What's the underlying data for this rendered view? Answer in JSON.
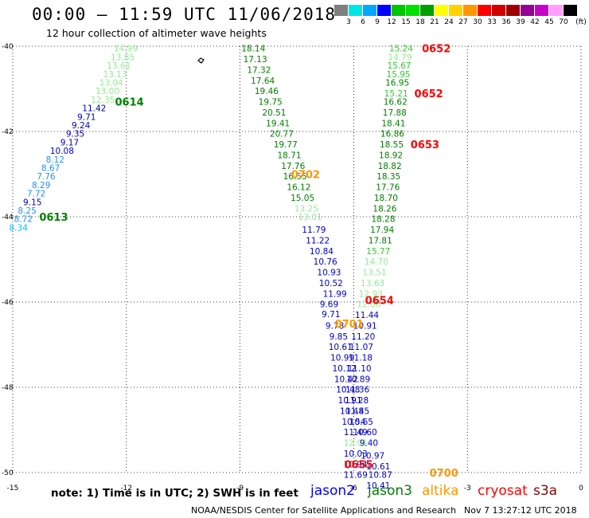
{
  "header": {
    "title": "00:00 — 11:59 UTC 11/06/2018",
    "subtitle": "12 hour collection of altimeter wave heights"
  },
  "colorbar": {
    "unit": "(ft)",
    "colors": [
      "#7f7f7f",
      "#00e5e5",
      "#00a8ff",
      "#0000ff",
      "#00c800",
      "#00e000",
      "#00a000",
      "#ffff00",
      "#ffd200",
      "#ff9600",
      "#ff0000",
      "#d20000",
      "#a00000",
      "#960096",
      "#c800c8",
      "#ffa0ff",
      "#000000"
    ],
    "labels": [
      "3",
      "6",
      "9",
      "12",
      "15",
      "18",
      "21",
      "24",
      "27",
      "30",
      "33",
      "36",
      "39",
      "42",
      "45",
      "70"
    ]
  },
  "axes": {
    "x_ticks": [
      "-15",
      "-12",
      "-9",
      "-6",
      "-3",
      "0"
    ],
    "y_ticks": [
      "-40",
      "-42",
      "-44",
      "-46",
      "-48",
      "-50"
    ]
  },
  "chart_data": {
    "type": "scatter",
    "xlim": [
      -15,
      0
    ],
    "ylim": [
      -50,
      -40
    ],
    "grid": true,
    "track_labels": [
      {
        "text": "0652",
        "sat": "cryosat",
        "lon": -4.2,
        "lat": -40.05
      },
      {
        "text": "0652",
        "sat": "cryosat",
        "lon": -4.4,
        "lat": -41.1
      },
      {
        "text": "0653",
        "sat": "cryosat",
        "lon": -4.5,
        "lat": -42.3
      },
      {
        "text": "0654",
        "sat": "cryosat",
        "lon": -5.7,
        "lat": -45.95
      },
      {
        "text": "0655",
        "sat": "cryosat",
        "lon": -6.25,
        "lat": -49.8
      },
      {
        "text": "0614",
        "sat": "jason3",
        "lon": -12.3,
        "lat": -41.3
      },
      {
        "text": "0613",
        "sat": "jason3",
        "lon": -14.3,
        "lat": -44.0
      },
      {
        "text": "0702",
        "sat": "altika",
        "lon": -7.65,
        "lat": -43.0
      },
      {
        "text": "0701",
        "sat": "altika",
        "lon": -6.5,
        "lat": -46.5
      },
      {
        "text": "0700",
        "sat": "altika",
        "lon": -4.0,
        "lat": -50.0
      }
    ],
    "series": [
      {
        "name": "track_a",
        "points": [
          {
            "lon": -12.02,
            "lat": -40.05,
            "v": "14.99",
            "c": "#90ee90"
          },
          {
            "lon": -12.1,
            "lat": -40.25,
            "v": "13.85",
            "c": "#90ee90"
          },
          {
            "lon": -12.2,
            "lat": -40.45,
            "v": "13.61",
            "c": "#90ee90"
          },
          {
            "lon": -12.3,
            "lat": -40.65,
            "v": "13.13",
            "c": "#90ee90"
          },
          {
            "lon": -12.4,
            "lat": -40.85,
            "v": "13.04",
            "c": "#90ee90"
          },
          {
            "lon": -12.5,
            "lat": -41.05,
            "v": "13.00",
            "c": "#90ee90"
          },
          {
            "lon": -12.62,
            "lat": -41.25,
            "v": "12.35",
            "c": "#90ee90"
          },
          {
            "lon": -12.85,
            "lat": -41.45,
            "v": "11.42",
            "c": "#0000c8"
          },
          {
            "lon": -13.05,
            "lat": -41.65,
            "v": "9.71",
            "c": "#0000c8"
          },
          {
            "lon": -13.2,
            "lat": -41.85,
            "v": "9.24",
            "c": "#0000c8"
          },
          {
            "lon": -13.35,
            "lat": -42.05,
            "v": "9.35",
            "c": "#0000c8"
          },
          {
            "lon": -13.5,
            "lat": -42.25,
            "v": "9.17",
            "c": "#0000c8"
          },
          {
            "lon": -13.7,
            "lat": -42.45,
            "v": "10.08",
            "c": "#0000c8"
          },
          {
            "lon": -13.88,
            "lat": -42.65,
            "v": "8.12",
            "c": "#1e90ff"
          },
          {
            "lon": -14.0,
            "lat": -42.85,
            "v": "8.67",
            "c": "#1e90ff"
          },
          {
            "lon": -14.12,
            "lat": -43.05,
            "v": "7.76",
            "c": "#1e90ff"
          },
          {
            "lon": -14.25,
            "lat": -43.25,
            "v": "8.29",
            "c": "#1e90ff"
          },
          {
            "lon": -14.38,
            "lat": -43.45,
            "v": "7.72",
            "c": "#1e90ff"
          },
          {
            "lon": -14.48,
            "lat": -43.65,
            "v": "9.15",
            "c": "#0000c8"
          },
          {
            "lon": -14.62,
            "lat": -43.85,
            "v": "8.25",
            "c": "#1e90ff"
          },
          {
            "lon": -14.72,
            "lat": -44.05,
            "v": "8.72",
            "c": "#1e90ff"
          },
          {
            "lon": -14.85,
            "lat": -44.25,
            "v": "8.34",
            "c": "#00bfff"
          }
        ]
      },
      {
        "name": "track_b",
        "points": [
          {
            "lon": -8.65,
            "lat": -40.05,
            "v": "18.14",
            "c": "#008000"
          },
          {
            "lon": -8.6,
            "lat": -40.3,
            "v": "17.13",
            "c": "#008000"
          },
          {
            "lon": -8.5,
            "lat": -40.55,
            "v": "17.32",
            "c": "#008000"
          },
          {
            "lon": -8.4,
            "lat": -40.8,
            "v": "17.64",
            "c": "#008000"
          },
          {
            "lon": -8.3,
            "lat": -41.05,
            "v": "19.46",
            "c": "#008000"
          },
          {
            "lon": -8.2,
            "lat": -41.3,
            "v": "19.75",
            "c": "#008000"
          },
          {
            "lon": -8.1,
            "lat": -41.55,
            "v": "20.51",
            "c": "#008000"
          },
          {
            "lon": -8.0,
            "lat": -41.8,
            "v": "19.41",
            "c": "#008000"
          },
          {
            "lon": -7.9,
            "lat": -42.05,
            "v": "20.77",
            "c": "#008000"
          },
          {
            "lon": -7.8,
            "lat": -42.3,
            "v": "19.77",
            "c": "#008000"
          },
          {
            "lon": -7.7,
            "lat": -42.55,
            "v": "18.71",
            "c": "#008000"
          },
          {
            "lon": -7.6,
            "lat": -42.8,
            "v": "17.76",
            "c": "#008000"
          },
          {
            "lon": -7.55,
            "lat": -43.05,
            "v": "16.55",
            "c": "#008000"
          },
          {
            "lon": -7.45,
            "lat": -43.3,
            "v": "16.12",
            "c": "#008000"
          },
          {
            "lon": -7.35,
            "lat": -43.55,
            "v": "15.05",
            "c": "#008000"
          },
          {
            "lon": -7.25,
            "lat": -43.8,
            "v": "13.25",
            "c": "#90ee90"
          },
          {
            "lon": -7.15,
            "lat": -44.0,
            "v": "13.01",
            "c": "#90ee90"
          },
          {
            "lon": -7.05,
            "lat": -44.3,
            "v": "11.79",
            "c": "#0000c8"
          },
          {
            "lon": -6.95,
            "lat": -44.55,
            "v": "11.22",
            "c": "#0000c8"
          },
          {
            "lon": -6.85,
            "lat": -44.8,
            "v": "10.84",
            "c": "#0000c8"
          },
          {
            "lon": -6.75,
            "lat": -45.05,
            "v": "10.76",
            "c": "#0000c8"
          },
          {
            "lon": -6.65,
            "lat": -45.3,
            "v": "10.93",
            "c": "#0000c8"
          },
          {
            "lon": -6.6,
            "lat": -45.55,
            "v": "10.52",
            "c": "#0000c8"
          },
          {
            "lon": -6.5,
            "lat": -45.8,
            "v": "11.99",
            "c": "#0000c8"
          },
          {
            "lon": -6.65,
            "lat": -46.05,
            "v": "9.69",
            "c": "#0000c8"
          },
          {
            "lon": -6.6,
            "lat": -46.28,
            "v": "9.71",
            "c": "#0000c8"
          },
          {
            "lon": -6.5,
            "lat": -46.55,
            "v": "9.78",
            "c": "#0000c8"
          },
          {
            "lon": -6.4,
            "lat": -46.8,
            "v": "9.85",
            "c": "#0000c8"
          },
          {
            "lon": -6.35,
            "lat": -47.05,
            "v": "10.61",
            "c": "#0000c8"
          },
          {
            "lon": -6.3,
            "lat": -47.3,
            "v": "10.99",
            "c": "#0000c8"
          },
          {
            "lon": -6.25,
            "lat": -47.55,
            "v": "10.12",
            "c": "#0000c8"
          },
          {
            "lon": -6.2,
            "lat": -47.8,
            "v": "10.42",
            "c": "#0000c8"
          },
          {
            "lon": -6.15,
            "lat": -48.05,
            "v": "10.48",
            "c": "#0000c8"
          },
          {
            "lon": -6.1,
            "lat": -48.3,
            "v": "10.91",
            "c": "#0000c8"
          },
          {
            "lon": -6.05,
            "lat": -48.55,
            "v": "10.48",
            "c": "#0000c8"
          },
          {
            "lon": -6.0,
            "lat": -48.8,
            "v": "10.54",
            "c": "#0000c8"
          },
          {
            "lon": -5.95,
            "lat": -49.05,
            "v": "11.49",
            "c": "#0000c8"
          },
          {
            "lon": -5.95,
            "lat": -49.3,
            "v": "12.01",
            "c": "#90ee90"
          },
          {
            "lon": -5.95,
            "lat": -49.55,
            "v": "10.03",
            "c": "#0000c8"
          },
          {
            "lon": -5.95,
            "lat": -49.8,
            "v": "10.94",
            "c": "#0000c8"
          },
          {
            "lon": -5.95,
            "lat": -50.05,
            "v": "11.69",
            "c": "#0000c8"
          }
        ]
      },
      {
        "name": "track_c",
        "points": [
          {
            "lon": -4.75,
            "lat": -40.05,
            "v": "15.24",
            "c": "#2ecc2e"
          },
          {
            "lon": -4.78,
            "lat": -40.25,
            "v": "14.79",
            "c": "#90ee90"
          },
          {
            "lon": -4.8,
            "lat": -40.45,
            "v": "15.67",
            "c": "#2ecc2e"
          },
          {
            "lon": -4.82,
            "lat": -40.65,
            "v": "15.95",
            "c": "#2ecc2e"
          },
          {
            "lon": -4.85,
            "lat": -40.85,
            "v": "16.95",
            "c": "#008000"
          },
          {
            "lon": -4.88,
            "lat": -41.1,
            "v": "15.21",
            "c": "#2ecc2e"
          },
          {
            "lon": -4.9,
            "lat": -41.3,
            "v": "16.62",
            "c": "#008000"
          },
          {
            "lon": -4.92,
            "lat": -41.55,
            "v": "17.88",
            "c": "#008000"
          },
          {
            "lon": -4.95,
            "lat": -41.8,
            "v": "18.41",
            "c": "#008000"
          },
          {
            "lon": -4.98,
            "lat": -42.05,
            "v": "16.86",
            "c": "#008000"
          },
          {
            "lon": -5.0,
            "lat": -42.3,
            "v": "18.55",
            "c": "#008000"
          },
          {
            "lon": -5.02,
            "lat": -42.55,
            "v": "18.92",
            "c": "#008000"
          },
          {
            "lon": -5.05,
            "lat": -42.8,
            "v": "18.82",
            "c": "#008000"
          },
          {
            "lon": -5.08,
            "lat": -43.05,
            "v": "18.35",
            "c": "#008000"
          },
          {
            "lon": -5.1,
            "lat": -43.3,
            "v": "17.76",
            "c": "#008000"
          },
          {
            "lon": -5.15,
            "lat": -43.55,
            "v": "18.70",
            "c": "#008000"
          },
          {
            "lon": -5.18,
            "lat": -43.8,
            "v": "18.26",
            "c": "#008000"
          },
          {
            "lon": -5.22,
            "lat": -44.05,
            "v": "18.28",
            "c": "#008000"
          },
          {
            "lon": -5.25,
            "lat": -44.3,
            "v": "17.94",
            "c": "#008000"
          },
          {
            "lon": -5.3,
            "lat": -44.55,
            "v": "17.81",
            "c": "#008000"
          },
          {
            "lon": -5.35,
            "lat": -44.8,
            "v": "15.77",
            "c": "#2ecc2e"
          },
          {
            "lon": -5.4,
            "lat": -45.05,
            "v": "14.70",
            "c": "#90ee90"
          },
          {
            "lon": -5.45,
            "lat": -45.3,
            "v": "13.51",
            "c": "#90ee90"
          },
          {
            "lon": -5.5,
            "lat": -45.55,
            "v": "13.63",
            "c": "#90ee90"
          },
          {
            "lon": -5.55,
            "lat": -45.8,
            "v": "12.93",
            "c": "#90ee90"
          },
          {
            "lon": -5.6,
            "lat": -46.05,
            "v": "12.06",
            "c": "#90ee90"
          },
          {
            "lon": -5.65,
            "lat": -46.3,
            "v": "11.44",
            "c": "#0000c8"
          },
          {
            "lon": -5.7,
            "lat": -46.55,
            "v": "10.91",
            "c": "#0000c8"
          },
          {
            "lon": -5.75,
            "lat": -46.8,
            "v": "11.20",
            "c": "#0000c8"
          },
          {
            "lon": -5.8,
            "lat": -47.05,
            "v": "11.07",
            "c": "#0000c8"
          },
          {
            "lon": -5.82,
            "lat": -47.3,
            "v": "11.18",
            "c": "#0000c8"
          },
          {
            "lon": -5.85,
            "lat": -47.55,
            "v": "11.10",
            "c": "#0000c8"
          },
          {
            "lon": -5.88,
            "lat": -47.8,
            "v": "10.89",
            "c": "#0000c8"
          },
          {
            "lon": -5.9,
            "lat": -48.05,
            "v": "11.36",
            "c": "#0000c8"
          },
          {
            "lon": -5.92,
            "lat": -48.3,
            "v": "11.28",
            "c": "#0000c8"
          },
          {
            "lon": -5.9,
            "lat": -48.55,
            "v": "11.45",
            "c": "#0000c8"
          },
          {
            "lon": -5.8,
            "lat": -48.8,
            "v": "10.65",
            "c": "#0000c8"
          },
          {
            "lon": -5.7,
            "lat": -49.05,
            "v": "10.60",
            "c": "#0000c8"
          },
          {
            "lon": -5.6,
            "lat": -49.3,
            "v": "9.40",
            "c": "#0000c8"
          },
          {
            "lon": -5.5,
            "lat": -49.6,
            "v": "10.97",
            "c": "#0000c8"
          },
          {
            "lon": -5.35,
            "lat": -49.85,
            "v": "10.61",
            "c": "#0000c8"
          },
          {
            "lon": -5.3,
            "lat": -50.05,
            "v": "10.87",
            "c": "#0000c8"
          },
          {
            "lon": -5.35,
            "lat": -50.3,
            "v": "10.41",
            "c": "#0000c8"
          }
        ]
      }
    ]
  },
  "footer": {
    "note": "note:  1) Time is in UTC;  2) SWH is in feet",
    "satellites": [
      {
        "name": "jason2",
        "color": "#0000ff"
      },
      {
        "name": "jason3",
        "color": "#008000"
      },
      {
        "name": "altika",
        "color": "#ff9600"
      },
      {
        "name": "cryosat",
        "color": "#ff0000"
      },
      {
        "name": "s3a",
        "color": "#8b0000"
      }
    ],
    "credit": "NOAA/NESDIS Center for Satellite Applications and Research",
    "timestamp": "Nov  7 13:27:12 UTC 2018"
  }
}
